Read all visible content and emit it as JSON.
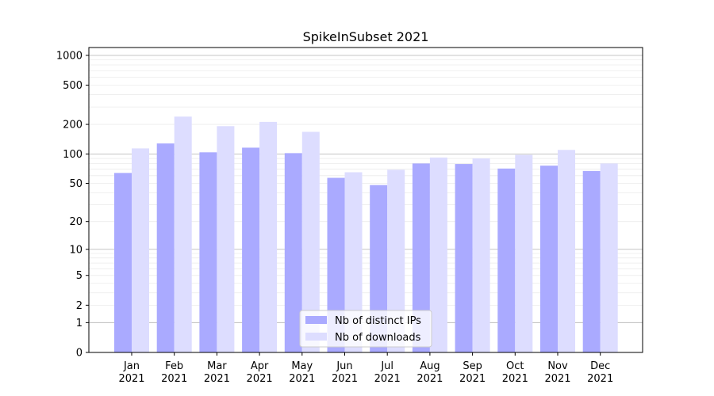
{
  "chart_data": {
    "type": "bar",
    "title": "SpikeInSubset 2021",
    "xlabel": "",
    "ylabel": "",
    "yscale": "log1p",
    "ylim": [
      0,
      1200
    ],
    "yticks": [
      0,
      1,
      2,
      5,
      10,
      20,
      50,
      100,
      200,
      500,
      1000
    ],
    "categories": [
      [
        "Jan",
        "2021"
      ],
      [
        "Feb",
        "2021"
      ],
      [
        "Mar",
        "2021"
      ],
      [
        "Apr",
        "2021"
      ],
      [
        "May",
        "2021"
      ],
      [
        "Jun",
        "2021"
      ],
      [
        "Jul",
        "2021"
      ],
      [
        "Aug",
        "2021"
      ],
      [
        "Sep",
        "2021"
      ],
      [
        "Oct",
        "2021"
      ],
      [
        "Nov",
        "2021"
      ],
      [
        "Dec",
        "2021"
      ]
    ],
    "series": [
      {
        "name": "Nb of distinct IPs",
        "color": "#aaaaff",
        "values": [
          64,
          128,
          104,
          116,
          102,
          57,
          48,
          80,
          79,
          71,
          76,
          67
        ]
      },
      {
        "name": "Nb of downloads",
        "color": "#ddddff",
        "values": [
          114,
          240,
          192,
          212,
          168,
          65,
          69,
          92,
          90,
          98,
          110,
          80
        ]
      }
    ],
    "grid": true,
    "legend_position": "bottom-center"
  }
}
